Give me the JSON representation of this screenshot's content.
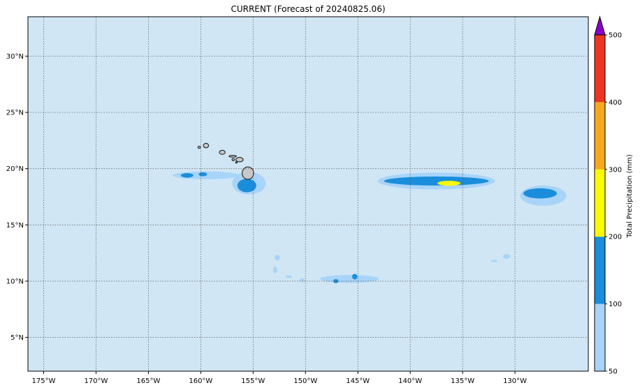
{
  "title": "CURRENT (Forecast of 20240825.06)",
  "colors": {
    "ocean": "#d0e6f5",
    "gridline": "#555555",
    "land": "#c8c8c8",
    "coast": "#111111",
    "bands": [
      "#a8d4f9",
      "#1a8edb",
      "#fbfb00",
      "#f7a91c",
      "#ef3422"
    ],
    "extend_triangle": "#8a00c8"
  },
  "map": {
    "lon_range": [
      -176.5,
      -123
    ],
    "lat_range": [
      2,
      33.5
    ],
    "lon_ticks": [
      {
        "value": -175,
        "label": "175°W"
      },
      {
        "value": -170,
        "label": "170°W"
      },
      {
        "value": -165,
        "label": "165°W"
      },
      {
        "value": -160,
        "label": "160°W"
      },
      {
        "value": -155,
        "label": "155°W"
      },
      {
        "value": -150,
        "label": "150°W"
      },
      {
        "value": -145,
        "label": "145°W"
      },
      {
        "value": -140,
        "label": "140°W"
      },
      {
        "value": -135,
        "label": "135°W"
      },
      {
        "value": -130,
        "label": "130°W"
      }
    ],
    "lat_ticks": [
      {
        "value": 5,
        "label": "5°N"
      },
      {
        "value": 10,
        "label": "10°N"
      },
      {
        "value": 15,
        "label": "15°N"
      },
      {
        "value": 20,
        "label": "20°N"
      },
      {
        "value": 25,
        "label": "25°N"
      },
      {
        "value": 30,
        "label": "30°N"
      }
    ]
  },
  "colorbar": {
    "label": "Total Precipitation (mm)",
    "levels": [
      50,
      100,
      200,
      300,
      400,
      500
    ],
    "tick_labels": [
      "50",
      "100",
      "200",
      "300",
      "400",
      "500"
    ],
    "extend": "max"
  },
  "precip_areas": [
    {
      "name": "hawaii-west-swath",
      "band": 0,
      "lon": -159.5,
      "lat": 19.4,
      "rx": 3.2,
      "ry": 0.35
    },
    {
      "name": "hawaii-west-core-a",
      "band": 1,
      "lon": -161.3,
      "lat": 19.4,
      "rx": 0.6,
      "ry": 0.2
    },
    {
      "name": "hawaii-west-core-b",
      "band": 1,
      "lon": -159.8,
      "lat": 19.5,
      "rx": 0.4,
      "ry": 0.18
    },
    {
      "name": "big-island-halo",
      "band": 0,
      "lon": -155.4,
      "lat": 18.7,
      "rx": 1.6,
      "ry": 1.0
    },
    {
      "name": "big-island-core",
      "band": 1,
      "lon": -155.6,
      "lat": 18.5,
      "rx": 0.9,
      "ry": 0.6
    },
    {
      "name": "big-island-peak",
      "band": 2,
      "lon": -155.1,
      "lat": 19.7,
      "rx": 0.15,
      "ry": 0.25
    },
    {
      "name": "east-swath-halo",
      "band": 0,
      "lon": -137.5,
      "lat": 18.9,
      "rx": 5.6,
      "ry": 0.75
    },
    {
      "name": "east-swath-core",
      "band": 1,
      "lon": -137.5,
      "lat": 18.9,
      "rx": 5.0,
      "ry": 0.4
    },
    {
      "name": "east-swath-peak",
      "band": 2,
      "lon": -136.3,
      "lat": 18.7,
      "rx": 1.1,
      "ry": 0.22
    },
    {
      "name": "far-east-halo",
      "band": 0,
      "lon": -127.3,
      "lat": 17.6,
      "rx": 2.2,
      "ry": 0.9
    },
    {
      "name": "far-east-core",
      "band": 1,
      "lon": -127.6,
      "lat": 17.8,
      "rx": 1.6,
      "ry": 0.45
    },
    {
      "name": "south-swath-halo",
      "band": 0,
      "lon": -145.8,
      "lat": 10.2,
      "rx": 2.8,
      "ry": 0.35
    },
    {
      "name": "south-swath-core-a",
      "band": 1,
      "lon": -145.3,
      "lat": 10.4,
      "rx": 0.25,
      "ry": 0.25
    },
    {
      "name": "south-swath-core-b",
      "band": 1,
      "lon": -147.1,
      "lat": 10.0,
      "rx": 0.25,
      "ry": 0.18
    },
    {
      "name": "small-cell-a",
      "band": 0,
      "lon": -152.7,
      "lat": 12.1,
      "rx": 0.25,
      "ry": 0.25
    },
    {
      "name": "small-cell-b",
      "band": 0,
      "lon": -152.9,
      "lat": 11.0,
      "rx": 0.2,
      "ry": 0.3
    },
    {
      "name": "small-cell-c",
      "band": 0,
      "lon": -150.3,
      "lat": 10.1,
      "rx": 0.25,
      "ry": 0.15
    },
    {
      "name": "small-cell-d",
      "band": 0,
      "lon": -151.6,
      "lat": 10.4,
      "rx": 0.3,
      "ry": 0.12
    },
    {
      "name": "small-cell-e",
      "band": 0,
      "lon": -130.8,
      "lat": 12.2,
      "rx": 0.35,
      "ry": 0.2
    },
    {
      "name": "small-cell-f",
      "band": 0,
      "lon": -132.0,
      "lat": 11.8,
      "rx": 0.35,
      "ry": 0.1
    }
  ],
  "islands": [
    {
      "name": "niihau",
      "lon": -160.15,
      "lat": 21.9,
      "rx": 0.12,
      "ry": 0.1
    },
    {
      "name": "kauai",
      "lon": -159.5,
      "lat": 22.05,
      "rx": 0.25,
      "ry": 0.2
    },
    {
      "name": "oahu",
      "lon": -157.95,
      "lat": 21.45,
      "rx": 0.28,
      "ry": 0.18
    },
    {
      "name": "molokai",
      "lon": -156.95,
      "lat": 21.1,
      "rx": 0.35,
      "ry": 0.08
    },
    {
      "name": "lanai",
      "lon": -156.9,
      "lat": 20.8,
      "rx": 0.12,
      "ry": 0.1
    },
    {
      "name": "maui",
      "lon": -156.3,
      "lat": 20.8,
      "rx": 0.35,
      "ry": 0.2
    },
    {
      "name": "kahoolawe",
      "lon": -156.6,
      "lat": 20.55,
      "rx": 0.08,
      "ry": 0.06
    },
    {
      "name": "big-island",
      "lon": -155.5,
      "lat": 19.6,
      "rx": 0.55,
      "ry": 0.55
    }
  ]
}
